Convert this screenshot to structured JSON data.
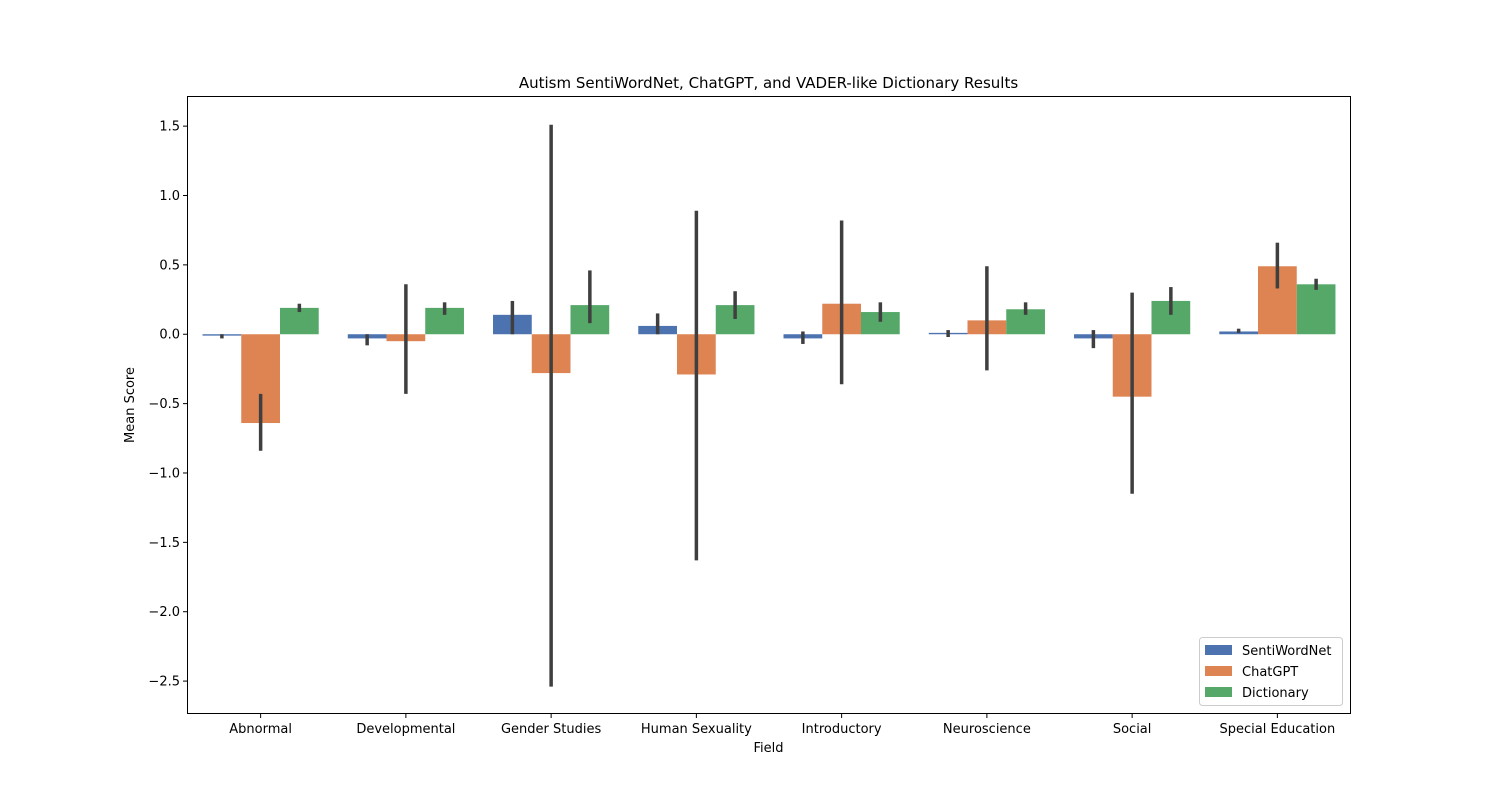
{
  "chart_data": {
    "type": "bar",
    "title": "Autism SentiWordNet, ChatGPT, and VADER-like Dictionary Results",
    "xlabel": "Field",
    "ylabel": "Mean Score",
    "ylim": [
      -2.73,
      1.71
    ],
    "yticks": [
      1.5,
      1.0,
      0.5,
      0.0,
      -0.5,
      -1.0,
      -1.5,
      -2.0,
      -2.5
    ],
    "ytick_labels": [
      "1.5",
      "1.0",
      "0.5",
      "0.0",
      "−0.5",
      "−1.0",
      "−1.5",
      "−2.0",
      "−2.5"
    ],
    "categories": [
      "Abnormal",
      "Developmental",
      "Gender Studies",
      "Human Sexuality",
      "Introductory",
      "Neuroscience",
      "Social",
      "Special Education"
    ],
    "legend_position": "bottom-right",
    "grid": false,
    "series": [
      {
        "name": "SentiWordNet",
        "color": "#4c72b0",
        "values": [
          -0.01,
          -0.03,
          0.14,
          0.06,
          -0.03,
          0.01,
          -0.03,
          0.02
        ],
        "ci_low": [
          -0.03,
          -0.08,
          0.0,
          0.0,
          -0.07,
          -0.02,
          -0.1,
          0.01
        ],
        "ci_high": [
          0.0,
          0.0,
          0.24,
          0.15,
          0.02,
          0.03,
          0.03,
          0.04
        ]
      },
      {
        "name": "ChatGPT",
        "color": "#dd8452",
        "values": [
          -0.64,
          -0.05,
          -0.28,
          -0.29,
          0.22,
          0.1,
          -0.45,
          0.49
        ],
        "ci_low": [
          -0.84,
          -0.43,
          -2.54,
          -1.63,
          -0.36,
          -0.26,
          -1.15,
          0.33
        ],
        "ci_high": [
          -0.43,
          0.36,
          1.51,
          0.89,
          0.82,
          0.49,
          0.3,
          0.66
        ]
      },
      {
        "name": "Dictionary",
        "color": "#55a868",
        "values": [
          0.19,
          0.19,
          0.21,
          0.21,
          0.16,
          0.18,
          0.24,
          0.36
        ],
        "ci_low": [
          0.16,
          0.14,
          0.08,
          0.11,
          0.09,
          0.14,
          0.14,
          0.32
        ],
        "ci_high": [
          0.22,
          0.23,
          0.46,
          0.31,
          0.23,
          0.23,
          0.34,
          0.4
        ]
      }
    ]
  }
}
